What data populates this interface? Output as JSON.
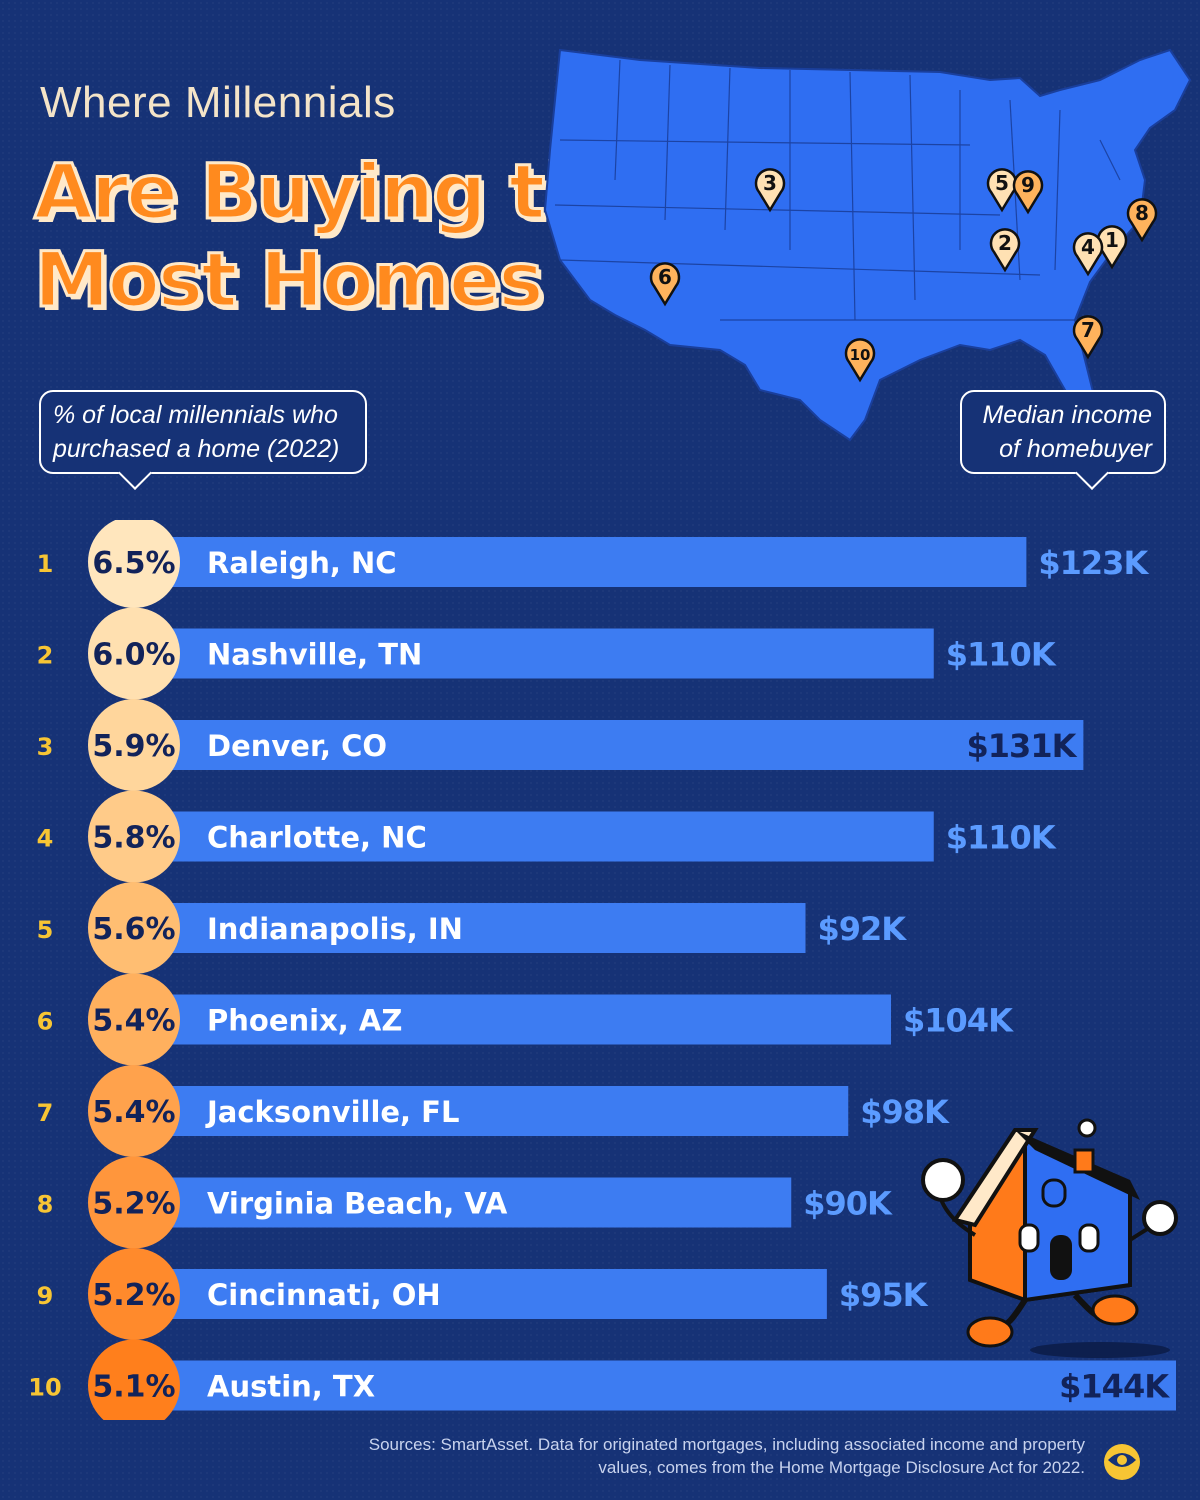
{
  "header": {
    "subtitle": "Where Millennials",
    "headline": "Are Buying the Most Homes"
  },
  "callouts": {
    "left": "% of local millennials who purchased a home (2022)",
    "right": "Median income of homebuyer"
  },
  "map": {
    "markers": [
      "1",
      "2",
      "3",
      "4",
      "5",
      "6",
      "7",
      "8",
      "9",
      "10"
    ]
  },
  "chart_data": {
    "type": "bar",
    "ranks": [
      "1",
      "2",
      "3",
      "4",
      "5",
      "6",
      "7",
      "8",
      "9",
      "10"
    ],
    "categories": [
      "Raleigh, NC",
      "Nashville, TN",
      "Denver, CO",
      "Charlotte, NC",
      "Indianapolis, IN",
      "Phoenix, AZ",
      "Jacksonville, FL",
      "Virginia Beach, VA",
      "Cincinnati, OH",
      "Austin, TX"
    ],
    "percent_labels": [
      "6.5%",
      "6.0%",
      "5.9%",
      "5.8%",
      "5.6%",
      "5.4%",
      "5.4%",
      "5.2%",
      "5.2%",
      "5.1%"
    ],
    "percent_values": [
      6.5,
      6.0,
      5.9,
      5.8,
      5.6,
      5.4,
      5.4,
      5.2,
      5.2,
      5.1
    ],
    "income_labels": [
      "$123K",
      "$110K",
      "$131K",
      "$110K",
      "$92K",
      "$104K",
      "$98K",
      "$90K",
      "$95K",
      "$144K"
    ],
    "values": [
      123,
      110,
      131,
      110,
      92,
      104,
      98,
      90,
      95,
      144
    ],
    "unit": "$K",
    "xlim": [
      0,
      144
    ]
  },
  "footer": {
    "sources": "Sources: SmartAsset. Data for originated mortgages, including associated income and property values, comes from the Home Mortgage Disclosure Act for 2022."
  },
  "colors": {
    "background": "#163276",
    "bar": "#3d7cf2",
    "accent": "#ff8a1e",
    "rank": "#f7c534",
    "income_label": "#5b9bff",
    "income_label_inside": "#12235a"
  }
}
